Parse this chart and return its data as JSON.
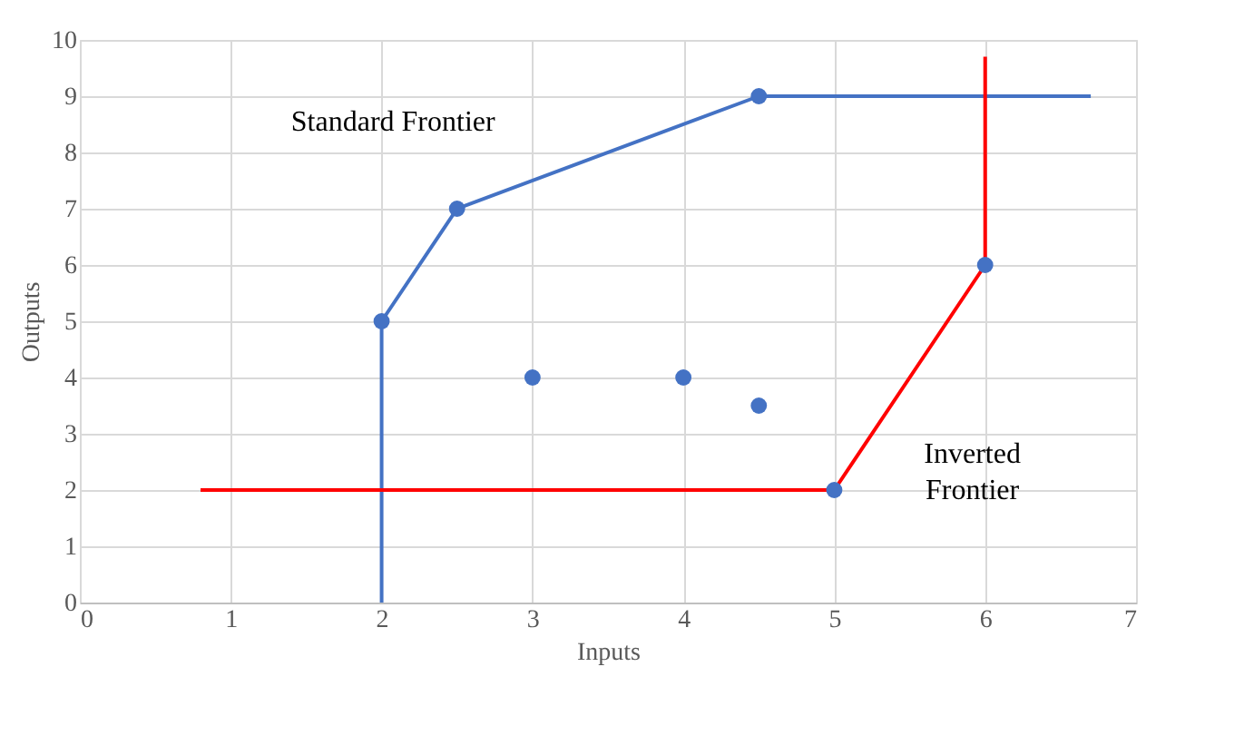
{
  "chart_data": {
    "type": "scatter",
    "xlabel": "Inputs",
    "ylabel": "Outputs",
    "xlim": [
      0,
      7
    ],
    "ylim": [
      0,
      10
    ],
    "xticks": [
      0,
      1,
      2,
      3,
      4,
      5,
      6,
      7
    ],
    "yticks": [
      0,
      1,
      2,
      3,
      4,
      5,
      6,
      7,
      8,
      9,
      10
    ],
    "grid": true,
    "annotations": [
      "Standard Frontier",
      "Inverted\nFrontier"
    ],
    "series": [
      {
        "type": "line",
        "color": "#4472c4",
        "marker": "none",
        "x": [
          2,
          2,
          2.5,
          4.5,
          6.7
        ],
        "values": [
          0,
          5,
          7,
          9,
          9
        ]
      },
      {
        "type": "line",
        "color": "#ff0000",
        "marker": "none",
        "x": [
          0.8,
          5,
          6,
          6
        ],
        "values": [
          2,
          2,
          6,
          9.7
        ]
      },
      {
        "color": "#4472c4",
        "marker": "circle",
        "x": [
          2,
          2.5,
          4.5,
          3,
          4,
          4.5,
          5,
          6
        ],
        "values": [
          5,
          7,
          9,
          4,
          4,
          3.5,
          2,
          6
        ]
      }
    ]
  }
}
